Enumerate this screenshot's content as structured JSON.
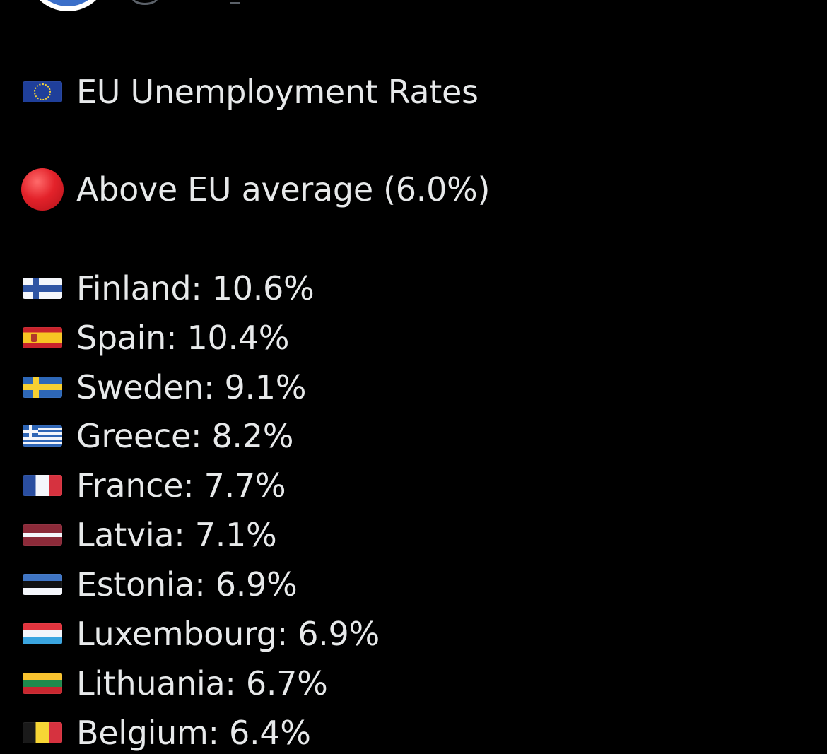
{
  "post": {
    "title": "EU Unemployment Rates",
    "subtitle": "Above EU average (6.0%)",
    "icons": {
      "title": "eu-flag-icon",
      "subtitle": "red-circle-icon"
    },
    "colors": {
      "background": "#000000",
      "text": "#e7e9ea",
      "red_dot": "#e3222a"
    },
    "countries": [
      {
        "label": "Finland: 10.6%",
        "flag": "finland-flag-icon"
      },
      {
        "label": "Spain: 10.4%",
        "flag": "spain-flag-icon"
      },
      {
        "label": "Sweden: 9.1%",
        "flag": "sweden-flag-icon"
      },
      {
        "label": "Greece: 8.2%",
        "flag": "greece-flag-icon"
      },
      {
        "label": "France: 7.7%",
        "flag": "france-flag-icon"
      },
      {
        "label": "Latvia: 7.1%",
        "flag": "latvia-flag-icon"
      },
      {
        "label": "Estonia: 6.9%",
        "flag": "estonia-flag-icon"
      },
      {
        "label": "Luxembourg: 6.9%",
        "flag": "luxembourg-flag-icon"
      },
      {
        "label": "Lithuania: 6.7%",
        "flag": "lithuania-flag-icon"
      },
      {
        "label": "Belgium: 6.4%",
        "flag": "belgium-flag-icon"
      }
    ]
  }
}
